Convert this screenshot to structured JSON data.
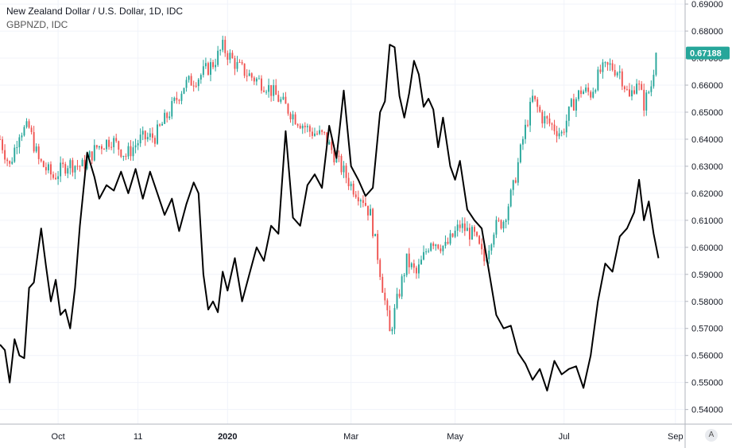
{
  "legend": {
    "main_title": "New Zealand Dollar / U.S. Dollar, 1D, IDC",
    "overlay_title": "GBPNZD, IDC"
  },
  "autoscale_label": "A",
  "colors": {
    "up": "#26a69a",
    "down": "#ef5350",
    "overlay": "#000000",
    "grid": "#f0f3fa",
    "axis": "#b2b5be",
    "price_tag": "#26a69a"
  },
  "chart_data": {
    "type": "line",
    "title": "New Zealand Dollar / U.S. Dollar, 1D, IDC",
    "x_ticks": [
      "Oct",
      "11",
      "2020",
      "Mar",
      "May",
      "Jul",
      "Sep"
    ],
    "x_ticks_bold": [
      "2020"
    ],
    "y_ticks": [
      0.69,
      0.68,
      0.67,
      0.66,
      0.65,
      0.64,
      0.63,
      0.62,
      0.61,
      0.6,
      0.59,
      0.58,
      0.57,
      0.56,
      0.55,
      0.54
    ],
    "y_tick_labels": [
      "0.69000",
      "0.68000",
      "0.67000",
      "0.66000",
      "0.65000",
      "0.64000",
      "0.63000",
      "0.62000",
      "0.61000",
      "0.60000",
      "0.59000",
      "0.58000",
      "0.57000",
      "0.56000",
      "0.55000",
      "0.54000"
    ],
    "ylim": [
      0.5346,
      0.6915
    ],
    "x_range_index": [
      0,
      261
    ],
    "x_tick_index": [
      24,
      57,
      94,
      145,
      188,
      233,
      279
    ],
    "last_price": "0.67188",
    "last_price_value": 0.67188,
    "series": [
      {
        "name": "New Zealand Dollar / U.S. Dollar",
        "type": "candlestick",
        "close_anchors": [
          [
            0,
            0.64
          ],
          [
            4,
            0.63
          ],
          [
            8,
            0.643
          ],
          [
            12,
            0.644
          ],
          [
            16,
            0.632
          ],
          [
            22,
            0.626
          ],
          [
            28,
            0.631
          ],
          [
            34,
            0.63
          ],
          [
            40,
            0.637
          ],
          [
            46,
            0.64
          ],
          [
            52,
            0.634
          ],
          [
            58,
            0.64
          ],
          [
            64,
            0.641
          ],
          [
            70,
            0.65
          ],
          [
            76,
            0.66
          ],
          [
            82,
            0.663
          ],
          [
            88,
            0.668
          ],
          [
            92,
            0.674
          ],
          [
            98,
            0.667
          ],
          [
            104,
            0.663
          ],
          [
            110,
            0.66
          ],
          [
            116,
            0.654
          ],
          [
            122,
            0.648
          ],
          [
            128,
            0.643
          ],
          [
            134,
            0.641
          ],
          [
            140,
            0.631
          ],
          [
            145,
            0.623
          ],
          [
            150,
            0.618
          ],
          [
            153,
            0.612
          ],
          [
            156,
            0.597
          ],
          [
            159,
            0.58
          ],
          [
            161,
            0.568
          ],
          [
            164,
            0.58
          ],
          [
            168,
            0.595
          ],
          [
            172,
            0.59
          ],
          [
            178,
            0.603
          ],
          [
            184,
            0.6
          ],
          [
            190,
            0.608
          ],
          [
            196,
            0.604
          ],
          [
            200,
            0.595
          ],
          [
            204,
            0.607
          ],
          [
            208,
            0.61
          ],
          [
            212,
            0.622
          ],
          [
            216,
            0.64
          ],
          [
            220,
            0.655
          ],
          [
            224,
            0.648
          ],
          [
            228,
            0.645
          ],
          [
            232,
            0.642
          ],
          [
            236,
            0.652
          ],
          [
            240,
            0.658
          ],
          [
            244,
            0.657
          ],
          [
            248,
            0.665
          ],
          [
            252,
            0.667
          ],
          [
            256,
            0.665
          ],
          [
            260,
            0.655
          ],
          [
            263,
            0.662
          ],
          [
            266,
            0.653
          ],
          [
            269,
            0.66
          ],
          [
            271,
            0.672
          ]
        ]
      },
      {
        "name": "GBPNZD",
        "type": "line",
        "points": [
          [
            0,
            0.564
          ],
          [
            2,
            0.562
          ],
          [
            4,
            0.55
          ],
          [
            6,
            0.566
          ],
          [
            8,
            0.56
          ],
          [
            10,
            0.559
          ],
          [
            12,
            0.585
          ],
          [
            14,
            0.587
          ],
          [
            17,
            0.607
          ],
          [
            19,
            0.593
          ],
          [
            21,
            0.58
          ],
          [
            23,
            0.588
          ],
          [
            25,
            0.575
          ],
          [
            27,
            0.577
          ],
          [
            29,
            0.57
          ],
          [
            31,
            0.585
          ],
          [
            33,
            0.608
          ],
          [
            36,
            0.635
          ],
          [
            39,
            0.626
          ],
          [
            41,
            0.618
          ],
          [
            44,
            0.623
          ],
          [
            47,
            0.621
          ],
          [
            50,
            0.628
          ],
          [
            53,
            0.62
          ],
          [
            56,
            0.629
          ],
          [
            59,
            0.618
          ],
          [
            62,
            0.628
          ],
          [
            65,
            0.62
          ],
          [
            68,
            0.612
          ],
          [
            71,
            0.618
          ],
          [
            74,
            0.606
          ],
          [
            77,
            0.616
          ],
          [
            80,
            0.624
          ],
          [
            82,
            0.62
          ],
          [
            84,
            0.59
          ],
          [
            86,
            0.577
          ],
          [
            88,
            0.58
          ],
          [
            90,
            0.576
          ],
          [
            92,
            0.591
          ],
          [
            94,
            0.584
          ],
          [
            97,
            0.596
          ],
          [
            100,
            0.58
          ],
          [
            103,
            0.59
          ],
          [
            106,
            0.6
          ],
          [
            109,
            0.595
          ],
          [
            112,
            0.608
          ],
          [
            115,
            0.605
          ],
          [
            118,
            0.643
          ],
          [
            121,
            0.611
          ],
          [
            124,
            0.608
          ],
          [
            127,
            0.623
          ],
          [
            130,
            0.627
          ],
          [
            133,
            0.622
          ],
          [
            136,
            0.645
          ],
          [
            139,
            0.633
          ],
          [
            142,
            0.658
          ],
          [
            145,
            0.63
          ],
          [
            148,
            0.625
          ],
          [
            151,
            0.619
          ],
          [
            154,
            0.622
          ],
          [
            157,
            0.65
          ],
          [
            159,
            0.654
          ],
          [
            161,
            0.675
          ],
          [
            163,
            0.674
          ],
          [
            165,
            0.656
          ],
          [
            167,
            0.648
          ],
          [
            169,
            0.657
          ],
          [
            171,
            0.669
          ],
          [
            173,
            0.664
          ],
          [
            175,
            0.652
          ],
          [
            177,
            0.655
          ],
          [
            179,
            0.651
          ],
          [
            181,
            0.637
          ],
          [
            183,
            0.648
          ],
          [
            186,
            0.63
          ],
          [
            188,
            0.625
          ],
          [
            190,
            0.632
          ],
          [
            193,
            0.614
          ],
          [
            196,
            0.61
          ],
          [
            199,
            0.607
          ],
          [
            202,
            0.591
          ],
          [
            205,
            0.575
          ],
          [
            208,
            0.57
          ],
          [
            211,
            0.571
          ],
          [
            214,
            0.561
          ],
          [
            217,
            0.557
          ],
          [
            220,
            0.551
          ],
          [
            223,
            0.555
          ],
          [
            226,
            0.547
          ],
          [
            229,
            0.558
          ],
          [
            232,
            0.553
          ],
          [
            235,
            0.555
          ],
          [
            238,
            0.556
          ],
          [
            241,
            0.548
          ],
          [
            244,
            0.56
          ],
          [
            247,
            0.58
          ],
          [
            250,
            0.594
          ],
          [
            253,
            0.591
          ],
          [
            256,
            0.604
          ],
          [
            259,
            0.607
          ],
          [
            262,
            0.613
          ],
          [
            264,
            0.625
          ],
          [
            266,
            0.61
          ],
          [
            268,
            0.617
          ],
          [
            270,
            0.605
          ],
          [
            272,
            0.596
          ]
        ]
      }
    ],
    "grid": true,
    "legend_position": "top-left"
  }
}
